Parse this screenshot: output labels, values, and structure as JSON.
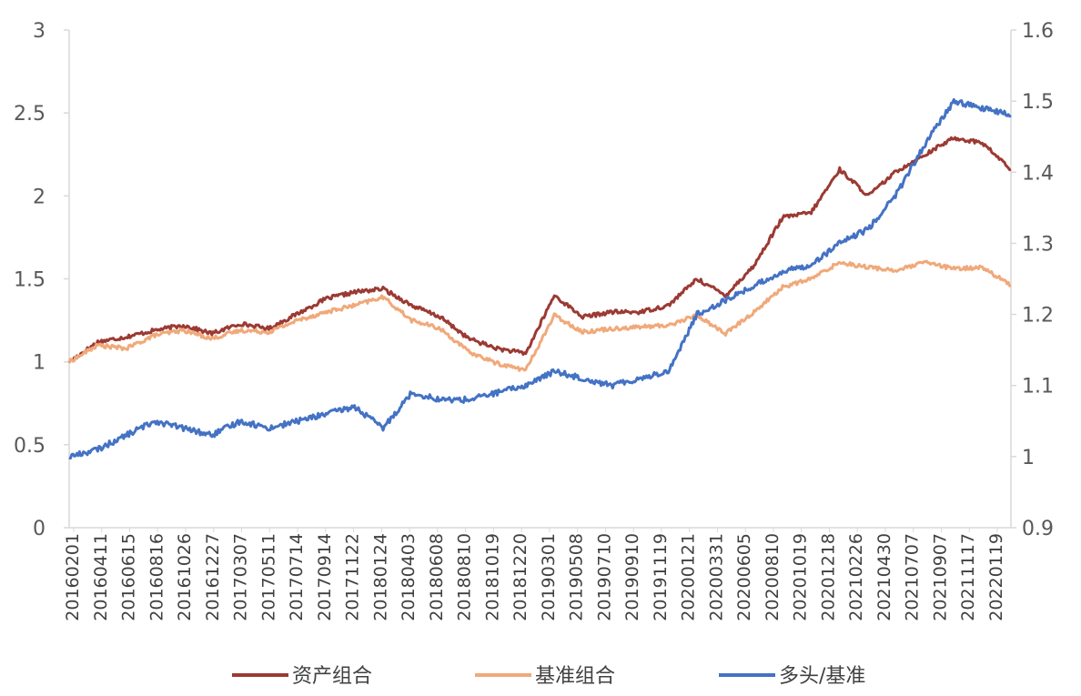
{
  "chart_data": {
    "type": "line",
    "x_categories": [
      "20160201",
      "20160411",
      "20160615",
      "20160816",
      "20161026",
      "20161227",
      "20170307",
      "20170511",
      "20170714",
      "20170914",
      "20171122",
      "20180124",
      "20180403",
      "20180608",
      "20180810",
      "20181019",
      "20181220",
      "20190301",
      "20190508",
      "20190710",
      "20190910",
      "20191119",
      "20200121",
      "20200331",
      "20200605",
      "20200810",
      "20201019",
      "20201218",
      "20210226",
      "20210430",
      "20210707",
      "20210907",
      "20211117",
      "20220119"
    ],
    "y_left": {
      "ticks": [
        "0",
        "0.5",
        "1",
        "1.5",
        "2",
        "2.5",
        "3"
      ],
      "range": [
        0,
        3
      ]
    },
    "y_right": {
      "ticks": [
        "0.9",
        "1",
        "1.1",
        "1.2",
        "1.3",
        "1.4",
        "1.5",
        "1.6"
      ],
      "range": [
        0.9,
        1.6
      ]
    },
    "series": [
      {
        "name": "资产组合",
        "axis": "left",
        "color": "#9B3A33",
        "values": [
          1.0,
          1.12,
          1.15,
          1.19,
          1.22,
          1.17,
          1.23,
          1.2,
          1.29,
          1.38,
          1.42,
          1.44,
          1.34,
          1.27,
          1.14,
          1.08,
          1.05,
          1.4,
          1.27,
          1.3,
          1.3,
          1.34,
          1.5,
          1.4,
          1.58,
          1.87,
          1.9,
          2.16,
          2.0,
          2.15,
          2.25,
          2.35,
          2.32,
          2.16
        ]
      },
      {
        "name": "基准组合",
        "axis": "left",
        "color": "#F0A97A",
        "values": [
          1.0,
          1.1,
          1.08,
          1.16,
          1.19,
          1.14,
          1.19,
          1.18,
          1.25,
          1.3,
          1.34,
          1.39,
          1.25,
          1.2,
          1.06,
          0.99,
          0.95,
          1.28,
          1.18,
          1.2,
          1.21,
          1.22,
          1.28,
          1.17,
          1.3,
          1.45,
          1.5,
          1.6,
          1.57,
          1.55,
          1.6,
          1.56,
          1.57,
          1.46
        ]
      },
      {
        "name": "多头/基准",
        "axis": "right",
        "color": "#4472C4",
        "values": [
          1.0,
          1.01,
          1.03,
          1.05,
          1.04,
          1.03,
          1.05,
          1.04,
          1.05,
          1.06,
          1.07,
          1.04,
          1.09,
          1.08,
          1.08,
          1.09,
          1.1,
          1.12,
          1.11,
          1.1,
          1.11,
          1.12,
          1.2,
          1.22,
          1.24,
          1.26,
          1.27,
          1.3,
          1.32,
          1.37,
          1.44,
          1.5,
          1.49,
          1.48
        ]
      }
    ],
    "legend_position": "bottom",
    "grid": false
  }
}
